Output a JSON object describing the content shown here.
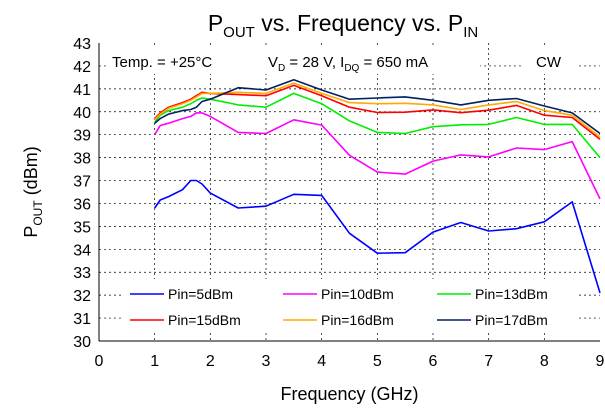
{
  "chart_data": {
    "type": "line",
    "title": {
      "main": "P",
      "sub": "OUT",
      "mid": " vs. Frequency vs. P",
      "sub2": "IN"
    },
    "xlabel": "Frequency (GHz)",
    "ylabel": {
      "main": "P",
      "sub": "OUT",
      "rest": " (dBm)"
    },
    "xlim": [
      0,
      9
    ],
    "ylim": [
      30,
      43
    ],
    "xticks": [
      0,
      1,
      2,
      3,
      4,
      5,
      6,
      7,
      8,
      9
    ],
    "yticks": [
      30,
      31,
      32,
      33,
      34,
      35,
      36,
      37,
      38,
      39,
      40,
      41,
      42,
      43
    ],
    "grid": true,
    "legend_position": "bottom",
    "annotations": {
      "temp": "Temp. = +25°C",
      "vd_main": "V",
      "vd_sub": "D",
      "vd_rest": " = 28 V, I",
      "idq_sub": "DQ",
      "idq_rest": " = 650 mA",
      "mode": "CW"
    },
    "series": [
      {
        "name": "Pin=5dBm",
        "color": "#0000ff",
        "x": [
          1.0,
          1.1,
          1.25,
          1.5,
          1.65,
          1.75,
          1.85,
          2.0,
          2.5,
          3.0,
          3.5,
          4.0,
          4.5,
          5.0,
          5.5,
          6.0,
          6.5,
          7.0,
          7.5,
          8.0,
          8.5,
          9.0
        ],
        "y": [
          35.8,
          36.15,
          36.3,
          36.6,
          37.0,
          37.0,
          36.85,
          36.45,
          35.8,
          35.88,
          36.4,
          36.35,
          34.7,
          33.83,
          33.85,
          34.75,
          35.17,
          34.8,
          34.9,
          35.2,
          36.07,
          32.1
        ]
      },
      {
        "name": "Pin=10dBm",
        "color": "#ff00ff",
        "x": [
          1.0,
          1.1,
          1.25,
          1.5,
          1.65,
          1.75,
          1.85,
          2.0,
          2.5,
          3.0,
          3.5,
          4.0,
          4.5,
          5.0,
          5.5,
          6.0,
          6.5,
          7.0,
          7.5,
          8.0,
          8.5,
          9.0
        ],
        "y": [
          39.0,
          39.4,
          39.5,
          39.7,
          39.8,
          39.95,
          39.95,
          39.8,
          39.1,
          39.05,
          39.65,
          39.42,
          38.1,
          37.37,
          37.28,
          37.85,
          38.12,
          38.03,
          38.42,
          38.35,
          38.7,
          36.2
        ]
      },
      {
        "name": "Pin=13dBm",
        "color": "#00ee00",
        "x": [
          1.0,
          1.1,
          1.25,
          1.5,
          1.65,
          1.75,
          1.85,
          2.0,
          2.5,
          3.0,
          3.5,
          4.0,
          4.5,
          5.0,
          5.5,
          6.0,
          6.5,
          7.0,
          7.5,
          8.0,
          8.5,
          9.0
        ],
        "y": [
          39.55,
          39.85,
          40.05,
          40.2,
          40.35,
          40.5,
          40.6,
          40.55,
          40.3,
          40.2,
          40.8,
          40.35,
          39.6,
          39.1,
          39.05,
          39.35,
          39.43,
          39.45,
          39.75,
          39.45,
          39.45,
          38.0
        ]
      },
      {
        "name": "Pin=15dBm",
        "color": "#ff0000",
        "x": [
          1.0,
          1.1,
          1.25,
          1.5,
          1.65,
          1.75,
          1.85,
          2.0,
          2.5,
          3.0,
          3.5,
          4.0,
          4.5,
          5.0,
          5.5,
          6.0,
          6.5,
          7.0,
          7.5,
          8.0,
          8.5,
          9.0
        ],
        "y": [
          39.7,
          39.95,
          40.2,
          40.4,
          40.55,
          40.7,
          40.85,
          40.8,
          40.75,
          40.7,
          41.15,
          40.7,
          40.2,
          39.97,
          39.98,
          40.08,
          39.96,
          40.07,
          40.28,
          39.85,
          39.75,
          38.8
        ]
      },
      {
        "name": "Pin=16dBm",
        "color": "#ffaa00",
        "x": [
          1.0,
          1.1,
          1.25,
          1.5,
          1.65,
          1.75,
          1.85,
          2.0,
          2.5,
          3.0,
          3.5,
          4.0,
          4.5,
          5.0,
          5.5,
          6.0,
          6.5,
          7.0,
          7.5,
          8.0,
          8.5,
          9.0
        ],
        "y": [
          39.65,
          39.9,
          40.15,
          40.35,
          40.5,
          40.65,
          40.8,
          40.8,
          40.85,
          40.8,
          41.25,
          40.8,
          40.4,
          40.35,
          40.37,
          40.3,
          40.1,
          40.3,
          40.45,
          40.05,
          39.85,
          38.9
        ]
      },
      {
        "name": "Pin=17dBm",
        "color": "#002060",
        "x": [
          1.0,
          1.1,
          1.25,
          1.5,
          1.65,
          1.75,
          1.85,
          2.0,
          2.5,
          3.0,
          3.5,
          4.0,
          4.5,
          5.0,
          5.5,
          6.0,
          6.5,
          7.0,
          7.5,
          8.0,
          8.5,
          9.0
        ],
        "y": [
          39.5,
          39.7,
          39.9,
          40.05,
          40.1,
          40.2,
          40.45,
          40.55,
          41.05,
          40.95,
          41.4,
          40.95,
          40.55,
          40.6,
          40.65,
          40.5,
          40.3,
          40.5,
          40.58,
          40.25,
          39.95,
          39.05
        ]
      }
    ]
  }
}
